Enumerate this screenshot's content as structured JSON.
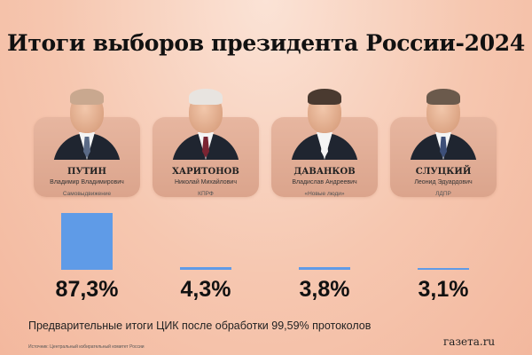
{
  "colors": {
    "bar": "#5f9be7",
    "background": "#f6c7b0"
  },
  "chart_data": {
    "type": "bar",
    "title": "Итоги выборов президента России-2024",
    "categories": [
      "ПУТИН",
      "ХАРИТОНОВ",
      "ДАВАНКОВ",
      "СЛУЦКИЙ"
    ],
    "values": [
      87.3,
      4.3,
      3.8,
      3.1
    ],
    "value_labels": [
      "87,3%",
      "4,3%",
      "3,8%",
      "3,1%"
    ],
    "ylim": [
      0,
      87.3
    ],
    "grid": false
  },
  "candidates": [
    {
      "name": "ПУТИН",
      "fullname": "Владимир Владимирович",
      "party": "Самовыдвижение",
      "tie": "#5a6a86",
      "hair": "#c9a88f"
    },
    {
      "name": "ХАРИТОНОВ",
      "fullname": "Николай Михайлович",
      "party": "КПРФ",
      "tie": "#7a2432",
      "hair": "#e8e4e0"
    },
    {
      "name": "ДАВАНКОВ",
      "fullname": "Владислав Андреевич",
      "party": "«Новые люди»",
      "tie": "#f4f4f4",
      "hair": "#4a3a30"
    },
    {
      "name": "СЛУЦКИЙ",
      "fullname": "Леонид Эдуардович",
      "party": "ЛДПР",
      "tie": "#3d4f78",
      "hair": "#6b5a4c"
    }
  ],
  "note": "Предварительные итоги ЦИК после обработки 99,59% протоколов",
  "source": "Источник: Центральный избирательный комитет России",
  "logo": "газета.ru"
}
